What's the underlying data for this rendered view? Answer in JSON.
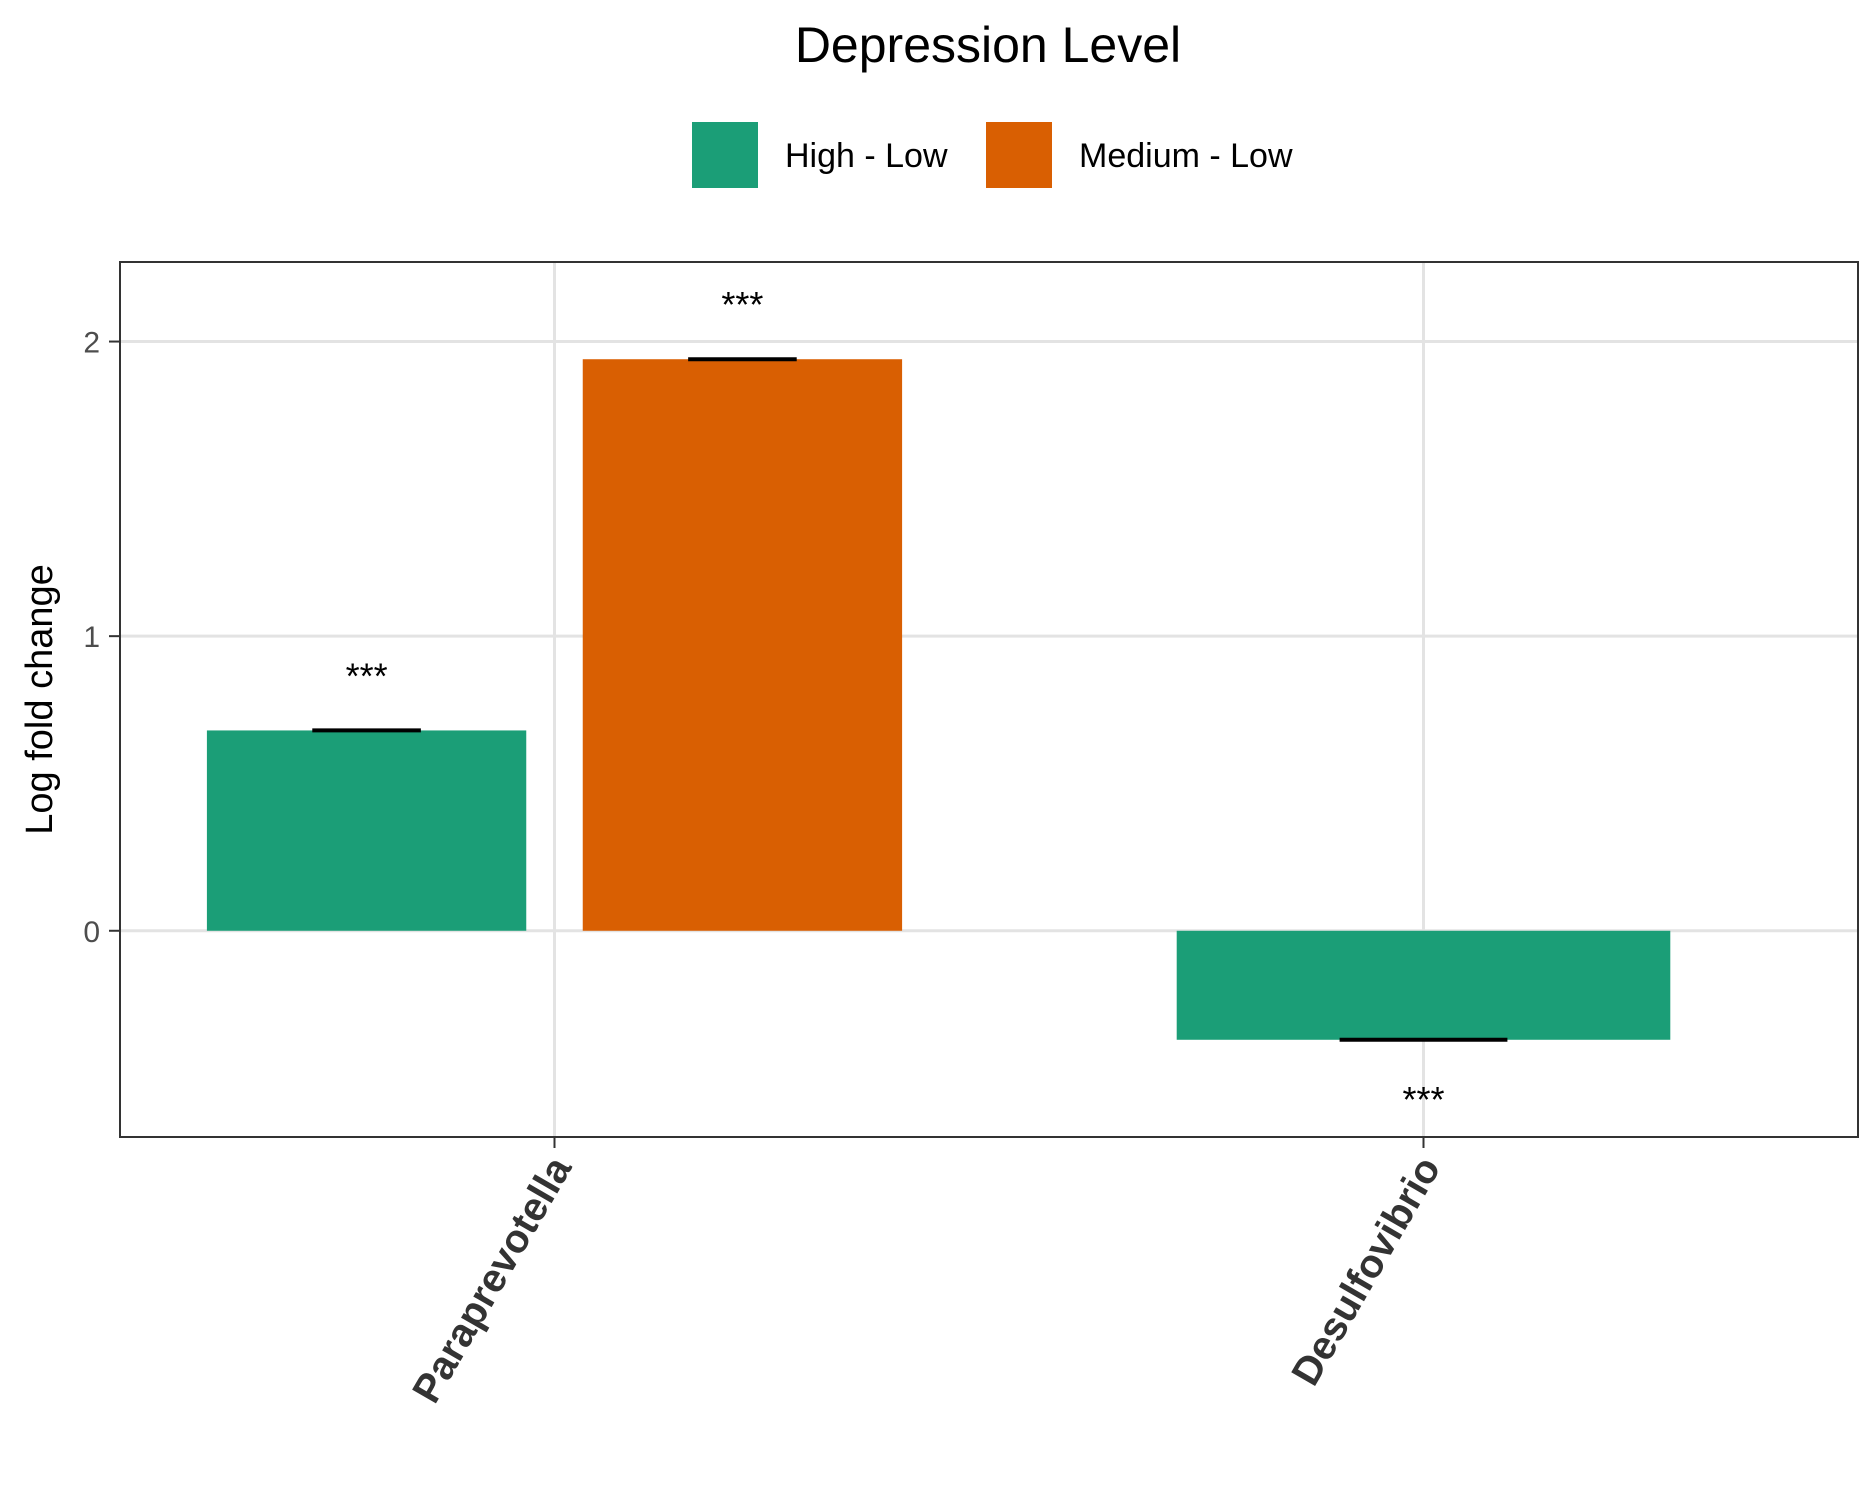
{
  "chart_data": {
    "type": "bar",
    "title": "",
    "legend": {
      "title": "Depression Level",
      "position": "top"
    },
    "xlabel": "",
    "ylabel": "Log fold change",
    "categories": [
      "Paraprevotella",
      "Desulfovibrio"
    ],
    "yticks": [
      0,
      1,
      2
    ],
    "ylim": [
      -0.7,
      2.27
    ],
    "grid": true,
    "series": [
      {
        "name": "High - Low",
        "color": "#1b9e77",
        "values": [
          0.68,
          -0.37
        ],
        "errors": [
          0.005,
          0.005
        ],
        "significance": [
          "***",
          "***"
        ]
      },
      {
        "name": "Medium - Low",
        "color": "#d95f02",
        "values": [
          1.94,
          null
        ],
        "errors": [
          0.005,
          null
        ],
        "significance": [
          "***",
          null
        ]
      }
    ]
  }
}
